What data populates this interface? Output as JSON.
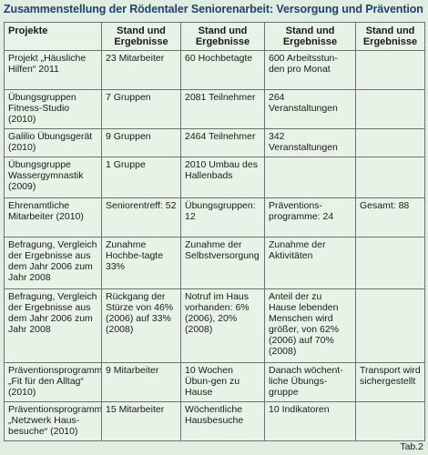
{
  "title": "Zusammenstellung der Rödentaler Seniorenarbeit: Versorgung und Prävention",
  "headers": [
    "Projekte",
    "Stand und Ergebnisse",
    "Stand und Ergebnisse",
    "Stand und Ergebnisse",
    "Stand und Ergebnisse"
  ],
  "rows": [
    [
      "Projekt „Häusliche Hilfen“ 2011",
      "23 Mitarbeiter",
      "60 Hochbetagte",
      "600 Arbeitsstun-den pro Monat",
      ""
    ],
    [
      "Übungsgruppen Fitness-Studio (2010)",
      "7 Gruppen",
      "2081 Teilnehmer",
      "264 Veranstaltungen",
      ""
    ],
    [
      "Galilio Übungsgerät (2010)",
      "9 Gruppen",
      "2464 Teilnehmer",
      "342 Veranstaltungen",
      ""
    ],
    [
      "Übungsgruppe Wassergymnastik (2009)",
      "1 Gruppe",
      "2010 Umbau des Hallenbads",
      "",
      ""
    ],
    [
      "Ehrenamtliche Mitarbeiter (2010)",
      "Seniorentreff: 52",
      "Übungsgruppen: 12",
      "Präventions-programme: 24",
      "Gesamt: 88"
    ],
    [
      "Befragung, Vergleich der Ergebnisse aus dem Jahr 2006 zum Jahr 2008",
      "Zunahme Hochbe-tagte 33%",
      "Zunahme der Selbstversorgung",
      "Zunahme der Aktivitäten",
      ""
    ],
    [
      "Befragung, Vergleich der Ergebnisse aus dem Jahr 2006 zum Jahr 2008",
      "Rückgang der Stürze von 46% (2006) auf 33% (2008)",
      "Notruf im Haus vorhanden: 6% (2006), 20% (2008)",
      "Anteil der zu Hause lebenden Menschen wird größer, von 62% (2006) auf 70% (2008)",
      ""
    ],
    [
      "Präventionsprogramm „Fit für den Alltag“ (2010)",
      "9 Mitarbeiter",
      "10 Wochen Übun-gen zu Hause",
      "Danach wöchent-liche Übungs-gruppe",
      "Transport wird sichergestellt"
    ],
    [
      "Präventionsprogramm „Netzwerk Haus-besuche“ (2010)",
      "15 Mitarbeiter",
      "Wöchentliche Hausbesuche",
      "10 Indikatoren",
      ""
    ]
  ],
  "table_label": "Tab.2"
}
